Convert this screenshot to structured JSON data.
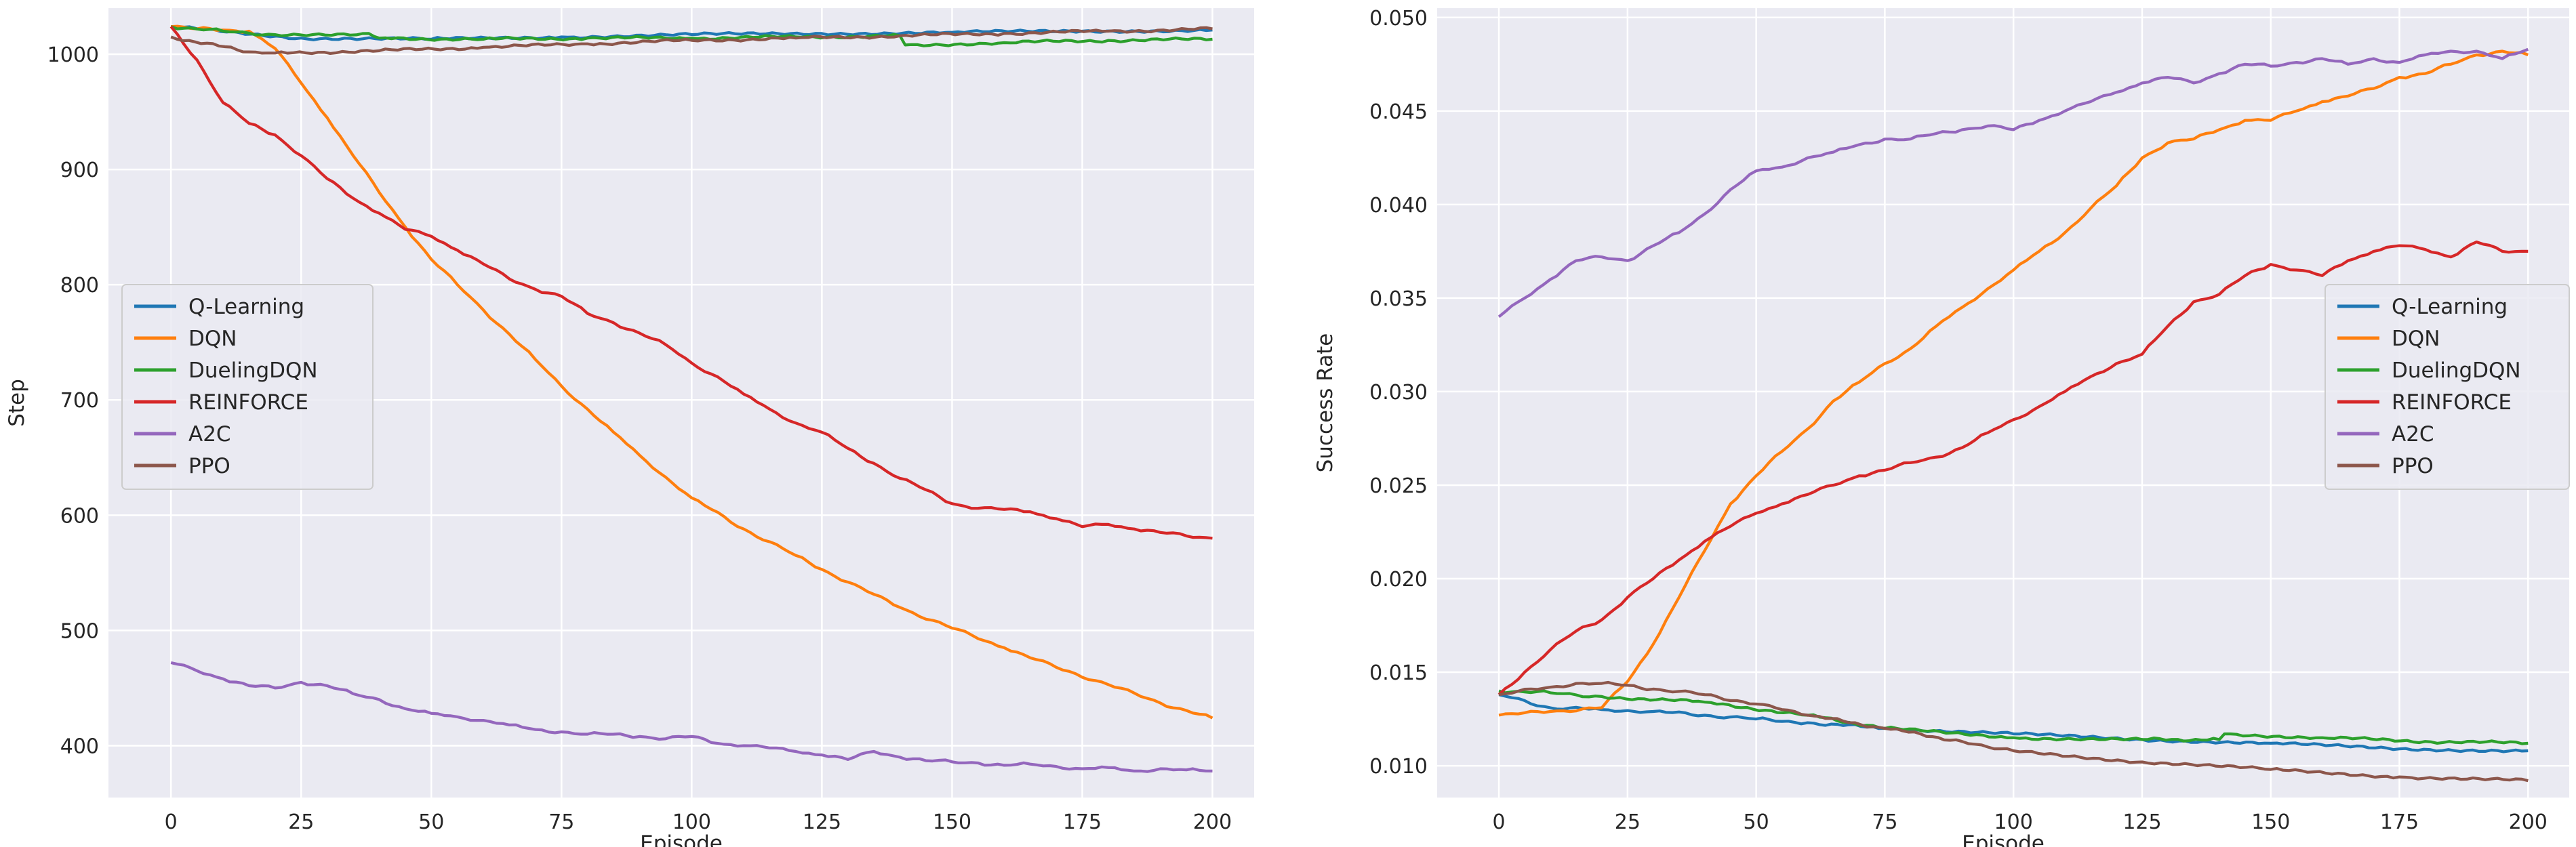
{
  "chart_data": [
    {
      "type": "line",
      "xlabel": "Episode",
      "ylabel": "Step",
      "xlim": [
        -12,
        208
      ],
      "ylim": [
        355,
        1040
      ],
      "xticks": [
        0,
        25,
        50,
        75,
        100,
        125,
        150,
        175,
        200
      ],
      "yticks": [
        400,
        500,
        600,
        700,
        800,
        900,
        1000
      ],
      "ytick_decimals": 0,
      "grid": true,
      "legend_position": "center-left",
      "series": [
        {
          "name": "Q-Learning",
          "color": "#1f77b4",
          "x": [
            0,
            25,
            50,
            75,
            100,
            125,
            150,
            175,
            200
          ],
          "y": [
            1024,
            1014,
            1013,
            1015,
            1017,
            1018,
            1019,
            1020,
            1021
          ]
        },
        {
          "name": "DQN",
          "color": "#ff7f0e",
          "x": [
            0,
            5,
            10,
            15,
            20,
            25,
            30,
            35,
            40,
            45,
            50,
            55,
            60,
            65,
            70,
            75,
            80,
            85,
            90,
            95,
            100,
            110,
            120,
            125,
            130,
            140,
            150,
            160,
            170,
            180,
            190,
            200
          ],
          "y": [
            1024,
            1022,
            1021,
            1020,
            1005,
            975,
            945,
            912,
            880,
            850,
            822,
            800,
            778,
            757,
            735,
            712,
            692,
            672,
            652,
            633,
            615,
            588,
            565,
            553,
            542,
            520,
            502,
            485,
            468,
            453,
            437,
            424
          ]
        },
        {
          "name": "DuelingDQN",
          "color": "#2ca02c",
          "x": [
            0,
            10,
            20,
            38,
            40,
            60,
            80,
            100,
            120,
            140,
            141,
            160,
            180,
            200
          ],
          "y": [
            1024,
            1020,
            1017,
            1018,
            1014,
            1013,
            1014,
            1014,
            1015,
            1016,
            1008,
            1010,
            1012,
            1013
          ]
        },
        {
          "name": "REINFORCE",
          "color": "#d62728",
          "x": [
            0,
            5,
            10,
            15,
            20,
            25,
            30,
            35,
            40,
            45,
            50,
            55,
            60,
            65,
            70,
            75,
            80,
            85,
            90,
            95,
            100,
            105,
            110,
            115,
            120,
            125,
            130,
            135,
            140,
            145,
            150,
            155,
            160,
            165,
            170,
            175,
            180,
            185,
            190,
            195,
            200
          ],
          "y": [
            1024,
            995,
            958,
            940,
            930,
            912,
            892,
            875,
            862,
            848,
            842,
            830,
            818,
            805,
            796,
            790,
            775,
            767,
            758,
            748,
            732,
            720,
            705,
            692,
            680,
            672,
            658,
            645,
            632,
            622,
            610,
            606,
            605,
            603,
            597,
            590,
            592,
            588,
            585,
            582,
            580
          ]
        },
        {
          "name": "A2C",
          "color": "#9467bd",
          "x": [
            0,
            5,
            10,
            15,
            20,
            25,
            30,
            35,
            40,
            45,
            50,
            55,
            60,
            65,
            70,
            75,
            80,
            85,
            90,
            95,
            100,
            105,
            110,
            115,
            120,
            125,
            130,
            135,
            140,
            145,
            150,
            155,
            160,
            165,
            170,
            175,
            180,
            185,
            190,
            195,
            200
          ],
          "y": [
            472,
            465,
            458,
            452,
            450,
            455,
            452,
            445,
            440,
            432,
            428,
            425,
            422,
            418,
            414,
            412,
            410,
            410,
            408,
            406,
            408,
            402,
            400,
            398,
            395,
            392,
            388,
            395,
            390,
            387,
            386,
            385,
            383,
            384,
            382,
            380,
            381,
            378,
            380,
            379,
            378
          ]
        },
        {
          "name": "PPO",
          "color": "#8c564b",
          "x": [
            0,
            15,
            20,
            40,
            60,
            80,
            100,
            120,
            140,
            160,
            180,
            200
          ],
          "y": [
            1015,
            1002,
            1001,
            1003,
            1006,
            1009,
            1012,
            1014,
            1016,
            1018,
            1020,
            1022
          ]
        }
      ]
    },
    {
      "type": "line",
      "xlabel": "Episode",
      "ylabel": "Success Rate",
      "xlim": [
        -12,
        208
      ],
      "ylim": [
        0.0083,
        0.0505
      ],
      "xticks": [
        0,
        25,
        50,
        75,
        100,
        125,
        150,
        175,
        200
      ],
      "yticks": [
        0.01,
        0.015,
        0.02,
        0.025,
        0.03,
        0.035,
        0.04,
        0.045,
        0.05
      ],
      "ytick_decimals": 3,
      "grid": true,
      "legend_position": "center-right",
      "series": [
        {
          "name": "Q-Learning",
          "color": "#1f77b4",
          "x": [
            0,
            10,
            20,
            30,
            40,
            50,
            60,
            75,
            100,
            125,
            150,
            175,
            200
          ],
          "y": [
            0.0138,
            0.0131,
            0.013,
            0.0129,
            0.0127,
            0.0125,
            0.0123,
            0.012,
            0.0117,
            0.0114,
            0.0112,
            0.0109,
            0.0108
          ]
        },
        {
          "name": "DQN",
          "color": "#ff7f0e",
          "x": [
            0,
            10,
            20,
            25,
            30,
            35,
            40,
            45,
            50,
            55,
            60,
            65,
            70,
            75,
            80,
            85,
            90,
            95,
            100,
            105,
            110,
            115,
            120,
            125,
            130,
            135,
            140,
            145,
            150,
            155,
            160,
            165,
            170,
            175,
            180,
            185,
            190,
            195,
            200
          ],
          "y": [
            0.0127,
            0.0129,
            0.0131,
            0.0145,
            0.0165,
            0.019,
            0.0215,
            0.024,
            0.0255,
            0.0268,
            0.028,
            0.0295,
            0.0305,
            0.0315,
            0.0323,
            0.0335,
            0.0345,
            0.0355,
            0.0365,
            0.0375,
            0.0385,
            0.0398,
            0.041,
            0.0425,
            0.0433,
            0.0435,
            0.044,
            0.0445,
            0.0445,
            0.045,
            0.0455,
            0.0458,
            0.0462,
            0.0468,
            0.047,
            0.0475,
            0.048,
            0.0482,
            0.048
          ]
        },
        {
          "name": "DuelingDQN",
          "color": "#2ca02c",
          "x": [
            0,
            10,
            20,
            40,
            60,
            75,
            100,
            125,
            140,
            141,
            160,
            180,
            200
          ],
          "y": [
            0.014,
            0.0139,
            0.0137,
            0.0134,
            0.0127,
            0.012,
            0.0115,
            0.0114,
            0.0114,
            0.0117,
            0.0115,
            0.0113,
            0.0112
          ]
        },
        {
          "name": "REINFORCE",
          "color": "#d62728",
          "x": [
            0,
            5,
            10,
            15,
            20,
            25,
            30,
            35,
            40,
            45,
            50,
            55,
            60,
            65,
            70,
            75,
            80,
            85,
            90,
            95,
            100,
            105,
            110,
            115,
            120,
            125,
            130,
            135,
            140,
            145,
            150,
            155,
            160,
            165,
            170,
            175,
            180,
            185,
            190,
            195,
            200
          ],
          "y": [
            0.0138,
            0.015,
            0.0162,
            0.0172,
            0.0178,
            0.019,
            0.02,
            0.021,
            0.022,
            0.0228,
            0.0235,
            0.024,
            0.0245,
            0.025,
            0.0255,
            0.0258,
            0.0262,
            0.0265,
            0.027,
            0.0278,
            0.0285,
            0.0292,
            0.03,
            0.0308,
            0.0315,
            0.032,
            0.0335,
            0.0348,
            0.0352,
            0.0362,
            0.0368,
            0.0365,
            0.0362,
            0.037,
            0.0375,
            0.0378,
            0.0376,
            0.0372,
            0.038,
            0.0375,
            0.0375
          ]
        },
        {
          "name": "A2C",
          "color": "#9467bd",
          "x": [
            0,
            5,
            10,
            15,
            20,
            25,
            30,
            35,
            40,
            45,
            50,
            55,
            60,
            65,
            70,
            75,
            80,
            85,
            90,
            95,
            100,
            105,
            110,
            115,
            120,
            125,
            130,
            135,
            140,
            145,
            150,
            155,
            160,
            165,
            170,
            175,
            180,
            185,
            190,
            195,
            200
          ],
          "y": [
            0.034,
            0.035,
            0.036,
            0.037,
            0.0372,
            0.037,
            0.0378,
            0.0385,
            0.0395,
            0.0408,
            0.0418,
            0.042,
            0.0425,
            0.0428,
            0.0432,
            0.0435,
            0.0435,
            0.0438,
            0.044,
            0.0442,
            0.044,
            0.0445,
            0.045,
            0.0455,
            0.046,
            0.0465,
            0.0468,
            0.0465,
            0.047,
            0.0475,
            0.0474,
            0.0476,
            0.0478,
            0.0475,
            0.0478,
            0.0476,
            0.048,
            0.0482,
            0.0482,
            0.0478,
            0.0483
          ]
        },
        {
          "name": "PPO",
          "color": "#8c564b",
          "x": [
            0,
            10,
            15,
            20,
            25,
            30,
            40,
            50,
            60,
            75,
            90,
            100,
            125,
            150,
            175,
            200
          ],
          "y": [
            0.0138,
            0.0142,
            0.0144,
            0.0144,
            0.0143,
            0.0141,
            0.0138,
            0.0133,
            0.0127,
            0.012,
            0.0113,
            0.0108,
            0.0102,
            0.0098,
            0.0094,
            0.0092
          ]
        }
      ]
    }
  ]
}
